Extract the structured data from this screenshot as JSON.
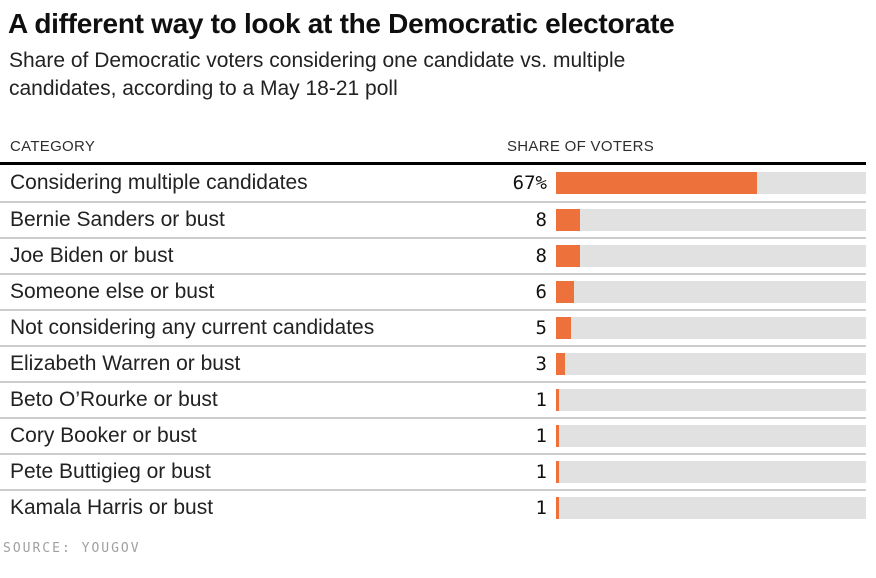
{
  "header": {
    "title": "A different way to look at the Democratic electorate",
    "subtitle": "Share of Democratic voters considering one candidate vs. multiple candidates, according to a May 18-21 poll"
  },
  "table": {
    "columns": [
      "CATEGORY",
      "SHARE OF VOTERS"
    ]
  },
  "chart_data": {
    "type": "bar",
    "orientation": "horizontal",
    "title": "A different way to look at the Democratic electorate",
    "subtitle": "Share of Democratic voters considering one candidate vs. multiple candidates, according to a May 18-21 poll",
    "categories": [
      "Considering multiple candidates",
      "Bernie Sanders or bust",
      "Joe Biden or bust",
      "Someone else or bust",
      "Not considering any current candidates",
      "Elizabeth Warren or bust",
      "Beto O’Rourke or bust",
      "Cory Booker or bust",
      "Pete Buttigieg or bust",
      "Kamala Harris or bust"
    ],
    "values": [
      67,
      8,
      8,
      6,
      5,
      3,
      1,
      1,
      1,
      1
    ],
    "value_labels": [
      "67%",
      "8",
      "8",
      "6",
      "5",
      "3",
      "1",
      "1",
      "1",
      "1"
    ],
    "unit": "%",
    "xlabel": "SHARE OF VOTERS",
    "ylabel": "CATEGORY",
    "xlim": [
      0,
      103.3
    ],
    "grid": false,
    "legend": "none",
    "bar_color": "#ed713a",
    "track_color": "#e1e1e1"
  },
  "footer": {
    "source": "SOURCE: YOUGOV"
  }
}
